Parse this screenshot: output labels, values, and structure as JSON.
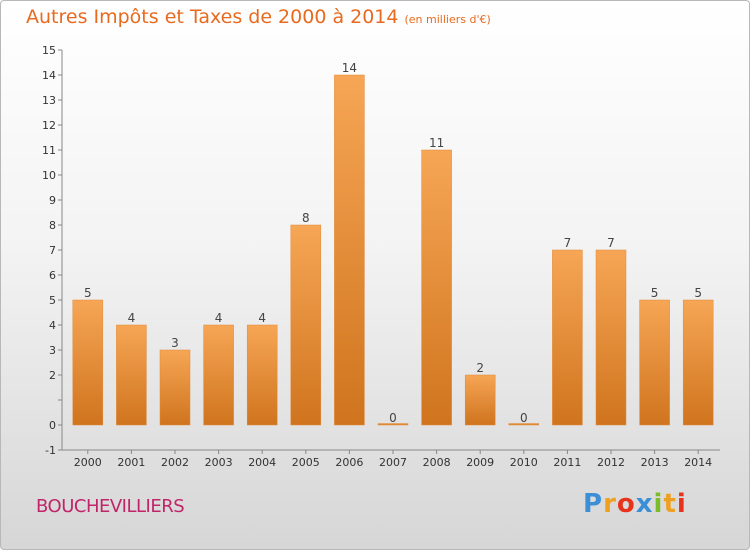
{
  "header": {
    "title": "Autres Impôts et Taxes de 2000 à 2014",
    "subtitle": "(en milliers d'€)"
  },
  "footer": {
    "place": "BOUCHEVILLIERS",
    "logo_letters": [
      "P",
      "r",
      "o",
      "x",
      "i",
      "t",
      "i"
    ],
    "logo_colors": [
      "#3a8fd6",
      "#f0a020",
      "#e8331c",
      "#3a8fd6",
      "#7cbc2a",
      "#f0a020",
      "#e8331c"
    ]
  },
  "colors": {
    "bar_light": "#f6a655",
    "bar_dark": "#d0741e",
    "axis": "#888888"
  },
  "chart_data": {
    "type": "bar",
    "title": "Autres Impôts et Taxes de 2000 à 2014",
    "subtitle": "(en milliers d'€)",
    "xlabel": "",
    "ylabel": "",
    "categories": [
      "2000",
      "2001",
      "2002",
      "2003",
      "2004",
      "2005",
      "2006",
      "2007",
      "2008",
      "2009",
      "2010",
      "2011",
      "2012",
      "2013",
      "2014"
    ],
    "values": [
      5,
      4,
      3,
      4,
      4,
      8,
      14,
      0,
      11,
      2,
      0,
      7,
      7,
      5,
      5
    ],
    "ylim": [
      -1,
      15
    ],
    "yticks": [
      -1,
      0,
      1,
      2,
      3,
      4,
      5,
      6,
      7,
      8,
      9,
      10,
      11,
      12,
      13,
      14,
      15
    ],
    "ytick_labels": [
      "-1",
      "0",
      "",
      "2",
      "3",
      "4",
      "5",
      "6",
      "7",
      "8",
      "9",
      "10",
      "11",
      "12",
      "13",
      "14",
      "15"
    ],
    "grid": false,
    "legend": "none"
  }
}
